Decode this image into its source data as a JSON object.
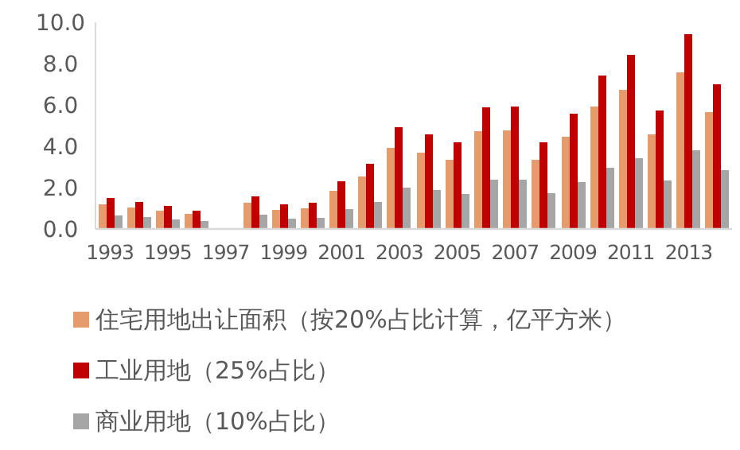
{
  "chart_data": {
    "type": "bar",
    "categories": [
      "1993",
      null,
      "1995",
      null,
      "1997",
      null,
      "1999",
      null,
      "2001",
      null,
      "2003",
      null,
      "2005",
      null,
      "2007",
      null,
      "2009",
      null,
      "2011",
      null,
      "2013",
      null
    ],
    "series": [
      {
        "name": "住宅用地出让面积（按20%占比计算，亿平方米）",
        "color": "#e59b6b",
        "values": [
          1.18,
          1.03,
          0.9,
          0.72,
          null,
          1.28,
          0.92,
          1.0,
          1.85,
          2.54,
          3.92,
          3.69,
          3.36,
          4.72,
          4.77,
          3.36,
          4.46,
          5.92,
          6.74,
          4.56,
          7.56,
          5.64
        ]
      },
      {
        "name": "工业用地（25%占比）",
        "color": "#c00000",
        "values": [
          1.49,
          1.31,
          1.13,
          0.9,
          null,
          1.59,
          1.18,
          1.28,
          2.31,
          3.15,
          4.92,
          4.59,
          4.21,
          5.87,
          5.92,
          4.21,
          5.56,
          7.41,
          8.44,
          5.72,
          9.44,
          7.0
        ]
      },
      {
        "name": "商业用地（10%占比）",
        "color": "#a6a6a6",
        "values": [
          0.64,
          0.56,
          0.46,
          0.38,
          null,
          0.69,
          0.49,
          0.54,
          0.95,
          1.31,
          2.0,
          1.87,
          1.69,
          2.38,
          2.38,
          1.72,
          2.26,
          2.97,
          3.41,
          2.33,
          3.79,
          2.85
        ]
      }
    ],
    "ylim": [
      0,
      10
    ],
    "yticks": [
      {
        "value": 0,
        "label": "0.0"
      },
      {
        "value": 2,
        "label": "2.0"
      },
      {
        "value": 4,
        "label": "4.0"
      },
      {
        "value": 6,
        "label": "6.0"
      },
      {
        "value": 8,
        "label": "8.0"
      },
      {
        "value": 10,
        "label": "10.0"
      }
    ],
    "grid": false,
    "legend": "bottom"
  }
}
